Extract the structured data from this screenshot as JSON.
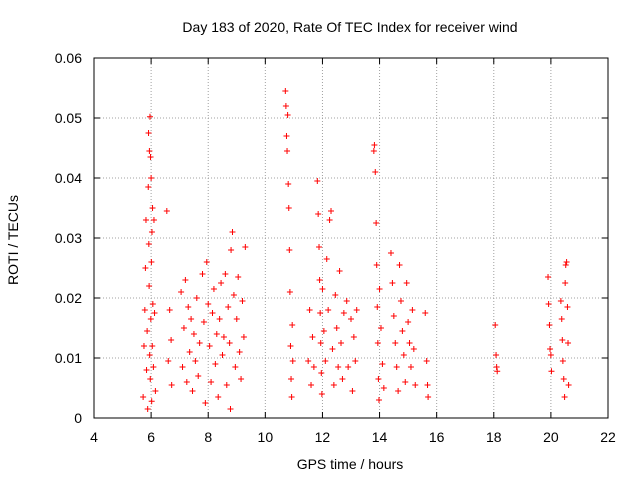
{
  "chart_data": {
    "type": "scatter",
    "title": "Day 183 of 2020, Rate Of TEC Index for receiver wind",
    "xlabel": "GPS time / hours",
    "ylabel": "ROTI / TECUs",
    "xlim": [
      4,
      22
    ],
    "ylim": [
      0,
      0.06
    ],
    "x_ticks": [
      "4",
      "6",
      "8",
      "10",
      "12",
      "14",
      "16",
      "18",
      "20",
      "22"
    ],
    "y_ticks": [
      "0",
      "0.01",
      "0.02",
      "0.03",
      "0.04",
      "0.05",
      "0.06"
    ],
    "grid": true,
    "marker": "+",
    "color": "#ff0000",
    "series": [
      {
        "name": "ROTI",
        "points": [
          [
            5.72,
            0.0035
          ],
          [
            5.75,
            0.012
          ],
          [
            5.78,
            0.018
          ],
          [
            5.8,
            0.025
          ],
          [
            5.82,
            0.033
          ],
          [
            5.84,
            0.008
          ],
          [
            5.86,
            0.0145
          ],
          [
            5.88,
            0.0015
          ],
          [
            5.9,
            0.0385
          ],
          [
            5.91,
            0.0475
          ],
          [
            5.92,
            0.029
          ],
          [
            5.93,
            0.022
          ],
          [
            5.94,
            0.0445
          ],
          [
            5.95,
            0.0105
          ],
          [
            5.96,
            0.0502
          ],
          [
            5.97,
            0.0065
          ],
          [
            5.98,
            0.0435
          ],
          [
            5.99,
            0.0165
          ],
          [
            6.0,
            0.04
          ],
          [
            6.01,
            0.026
          ],
          [
            6.02,
            0.0028
          ],
          [
            6.03,
            0.031
          ],
          [
            6.04,
            0.012
          ],
          [
            6.05,
            0.035
          ],
          [
            6.06,
            0.019
          ],
          [
            6.08,
            0.0085
          ],
          [
            6.1,
            0.033
          ],
          [
            6.12,
            0.0175
          ],
          [
            6.15,
            0.0045
          ],
          [
            6.55,
            0.0345
          ],
          [
            6.6,
            0.0095
          ],
          [
            6.65,
            0.018
          ],
          [
            6.7,
            0.013
          ],
          [
            6.72,
            0.0055
          ],
          [
            7.05,
            0.021
          ],
          [
            7.1,
            0.0085
          ],
          [
            7.15,
            0.015
          ],
          [
            7.2,
            0.023
          ],
          [
            7.25,
            0.006
          ],
          [
            7.3,
            0.0185
          ],
          [
            7.35,
            0.011
          ],
          [
            7.4,
            0.0165
          ],
          [
            7.45,
            0.0045
          ],
          [
            7.5,
            0.014
          ],
          [
            7.55,
            0.0095
          ],
          [
            7.6,
            0.02
          ],
          [
            7.65,
            0.007
          ],
          [
            7.7,
            0.0125
          ],
          [
            7.8,
            0.024
          ],
          [
            7.85,
            0.016
          ],
          [
            7.9,
            0.0025
          ],
          [
            7.95,
            0.026
          ],
          [
            8.0,
            0.019
          ],
          [
            8.05,
            0.012
          ],
          [
            8.1,
            0.006
          ],
          [
            8.15,
            0.0175
          ],
          [
            8.2,
            0.0215
          ],
          [
            8.25,
            0.009
          ],
          [
            8.3,
            0.014
          ],
          [
            8.35,
            0.0035
          ],
          [
            8.4,
            0.0165
          ],
          [
            8.45,
            0.0225
          ],
          [
            8.5,
            0.0105
          ],
          [
            8.55,
            0.0135
          ],
          [
            8.6,
            0.024
          ],
          [
            8.65,
            0.0055
          ],
          [
            8.7,
            0.0185
          ],
          [
            8.75,
            0.0125
          ],
          [
            8.78,
            0.0015
          ],
          [
            8.8,
            0.028
          ],
          [
            8.85,
            0.031
          ],
          [
            8.9,
            0.0205
          ],
          [
            8.95,
            0.0085
          ],
          [
            9.0,
            0.0165
          ],
          [
            9.05,
            0.0235
          ],
          [
            9.1,
            0.011
          ],
          [
            9.15,
            0.0065
          ],
          [
            9.2,
            0.0195
          ],
          [
            9.25,
            0.0135
          ],
          [
            9.3,
            0.0285
          ],
          [
            10.7,
            0.0545
          ],
          [
            10.72,
            0.052
          ],
          [
            10.74,
            0.047
          ],
          [
            10.76,
            0.0445
          ],
          [
            10.78,
            0.0505
          ],
          [
            10.8,
            0.039
          ],
          [
            10.82,
            0.035
          ],
          [
            10.84,
            0.028
          ],
          [
            10.86,
            0.021
          ],
          [
            10.88,
            0.012
          ],
          [
            10.9,
            0.0065
          ],
          [
            10.92,
            0.0035
          ],
          [
            10.94,
            0.0155
          ],
          [
            10.96,
            0.0095
          ],
          [
            11.5,
            0.0095
          ],
          [
            11.55,
            0.018
          ],
          [
            11.6,
            0.0055
          ],
          [
            11.65,
            0.0135
          ],
          [
            11.7,
            0.0085
          ],
          [
            11.82,
            0.0395
          ],
          [
            11.85,
            0.034
          ],
          [
            11.88,
            0.0285
          ],
          [
            11.9,
            0.023
          ],
          [
            11.92,
            0.0175
          ],
          [
            11.94,
            0.0125
          ],
          [
            11.96,
            0.0075
          ],
          [
            11.98,
            0.004
          ],
          [
            12.0,
            0.0215
          ],
          [
            12.05,
            0.0145
          ],
          [
            12.1,
            0.0095
          ],
          [
            12.15,
            0.0265
          ],
          [
            12.2,
            0.018
          ],
          [
            12.25,
            0.033
          ],
          [
            12.3,
            0.0345
          ],
          [
            12.35,
            0.0115
          ],
          [
            12.4,
            0.0055
          ],
          [
            12.45,
            0.0205
          ],
          [
            12.5,
            0.015
          ],
          [
            12.55,
            0.0085
          ],
          [
            12.6,
            0.0245
          ],
          [
            12.65,
            0.0125
          ],
          [
            12.7,
            0.0065
          ],
          [
            12.75,
            0.0175
          ],
          [
            12.85,
            0.0195
          ],
          [
            12.9,
            0.0085
          ],
          [
            13.0,
            0.0165
          ],
          [
            13.05,
            0.0045
          ],
          [
            13.1,
            0.0135
          ],
          [
            13.15,
            0.0095
          ],
          [
            13.2,
            0.018
          ],
          [
            13.8,
            0.0445
          ],
          [
            13.82,
            0.0455
          ],
          [
            13.85,
            0.041
          ],
          [
            13.88,
            0.0325
          ],
          [
            13.9,
            0.0255
          ],
          [
            13.92,
            0.0185
          ],
          [
            13.94,
            0.0125
          ],
          [
            13.96,
            0.0065
          ],
          [
            13.98,
            0.003
          ],
          [
            14.0,
            0.0215
          ],
          [
            14.05,
            0.015
          ],
          [
            14.1,
            0.009
          ],
          [
            14.15,
            0.005
          ],
          [
            14.4,
            0.0275
          ],
          [
            14.45,
            0.0225
          ],
          [
            14.5,
            0.017
          ],
          [
            14.55,
            0.0125
          ],
          [
            14.6,
            0.0085
          ],
          [
            14.65,
            0.0045
          ],
          [
            14.7,
            0.0255
          ],
          [
            14.75,
            0.0195
          ],
          [
            14.8,
            0.0145
          ],
          [
            14.85,
            0.0105
          ],
          [
            14.9,
            0.006
          ],
          [
            14.95,
            0.0225
          ],
          [
            15.0,
            0.016
          ],
          [
            15.05,
            0.0125
          ],
          [
            15.1,
            0.0085
          ],
          [
            15.15,
            0.018
          ],
          [
            15.2,
            0.0115
          ],
          [
            15.25,
            0.0055
          ],
          [
            15.6,
            0.0175
          ],
          [
            15.65,
            0.0095
          ],
          [
            15.68,
            0.0055
          ],
          [
            15.7,
            0.0035
          ],
          [
            18.05,
            0.0155
          ],
          [
            18.08,
            0.0105
          ],
          [
            18.1,
            0.0085
          ],
          [
            18.12,
            0.0078
          ],
          [
            19.9,
            0.0235
          ],
          [
            19.92,
            0.019
          ],
          [
            19.95,
            0.0155
          ],
          [
            19.97,
            0.0115
          ],
          [
            20.0,
            0.0105
          ],
          [
            20.02,
            0.0078
          ],
          [
            20.35,
            0.0195
          ],
          [
            20.38,
            0.0165
          ],
          [
            20.4,
            0.013
          ],
          [
            20.42,
            0.0095
          ],
          [
            20.45,
            0.0065
          ],
          [
            20.48,
            0.0035
          ],
          [
            20.5,
            0.0225
          ],
          [
            20.52,
            0.0255
          ],
          [
            20.55,
            0.026
          ],
          [
            20.58,
            0.0185
          ],
          [
            20.6,
            0.0125
          ],
          [
            20.62,
            0.0055
          ]
        ]
      }
    ]
  }
}
